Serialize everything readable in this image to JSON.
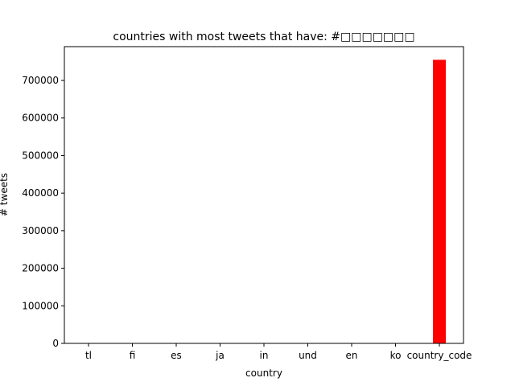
{
  "chart_data": {
    "type": "bar",
    "title": "countries with most tweets that have: #□□□□□□□",
    "xlabel": "country",
    "ylabel": "# tweets",
    "categories": [
      "tl",
      "fi",
      "es",
      "ja",
      "in",
      "und",
      "en",
      "ko",
      "country_code"
    ],
    "values": [
      1,
      1,
      1,
      1,
      1,
      1,
      1,
      1,
      755000
    ],
    "ylim": [
      0,
      790000
    ],
    "yticks": [
      0,
      100000,
      200000,
      300000,
      400000,
      500000,
      600000,
      700000
    ],
    "bar_color": "#ff0000",
    "grid": false,
    "legend": "none"
  }
}
